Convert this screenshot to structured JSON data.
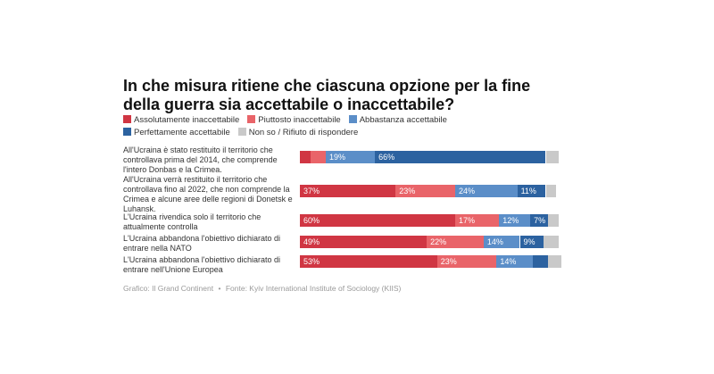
{
  "chart_data": {
    "type": "bar",
    "orientation": "horizontal",
    "stacked": true,
    "title": "In che misura ritiene che ciascuna opzione per la fine della guerra sia accettabile o inaccettabile?",
    "series": [
      {
        "name": "Assolutamente inaccettabile",
        "color": "#d03643"
      },
      {
        "name": "Piuttosto inaccettabile",
        "color": "#e96469"
      },
      {
        "name": "Abbastanza accettabile",
        "color": "#5b8ec8"
      },
      {
        "name": "Perfettamente accettabile",
        "color": "#2c62a0"
      },
      {
        "name": "Non so / Rifiuto di rispondere",
        "color": "#c9c9c9"
      }
    ],
    "categories": [
      {
        "label": "All'Ucraina è stato restituito il territorio che controllava prima del 2014, che comprende l'intero Donbas e la Crimea.",
        "values": [
          4,
          6,
          19,
          66,
          5
        ],
        "labels": [
          "",
          "",
          "19%",
          "66%",
          ""
        ]
      },
      {
        "label": "All'Ucraina verrà restituito il territorio che controllava fino al 2022, che non comprende la Crimea e alcune aree delle regioni di Donetsk e Luhansk.",
        "values": [
          37,
          23,
          24,
          11,
          4
        ],
        "labels": [
          "37%",
          "23%",
          "24%",
          "11%",
          ""
        ]
      },
      {
        "label": "L'Ucraina rivendica solo il territorio che attualmente controlla",
        "values": [
          60,
          17,
          12,
          7,
          4
        ],
        "labels": [
          "60%",
          "17%",
          "12%",
          "7%",
          ""
        ]
      },
      {
        "label": "L'Ucraina abbandona l'obiettivo dichiarato di entrare nella NATO",
        "values": [
          49,
          22,
          14,
          9,
          6
        ],
        "labels": [
          "49%",
          "22%",
          "14%",
          "9%",
          ""
        ]
      },
      {
        "label": "L'Ucraina abbandona l'obiettivo dichiarato di entrare nell'Unione Europea",
        "values": [
          53,
          23,
          14,
          6,
          5
        ],
        "labels": [
          "53%",
          "23%",
          "14%",
          "",
          ""
        ]
      }
    ],
    "xlim": [
      0,
      100
    ],
    "legend_position": "top"
  },
  "footer": {
    "credit": "Grafico: Il Grand Continent",
    "separator": "•",
    "source": "Fonte: Kyiv International Institute of Sociology (KIIS)"
  }
}
